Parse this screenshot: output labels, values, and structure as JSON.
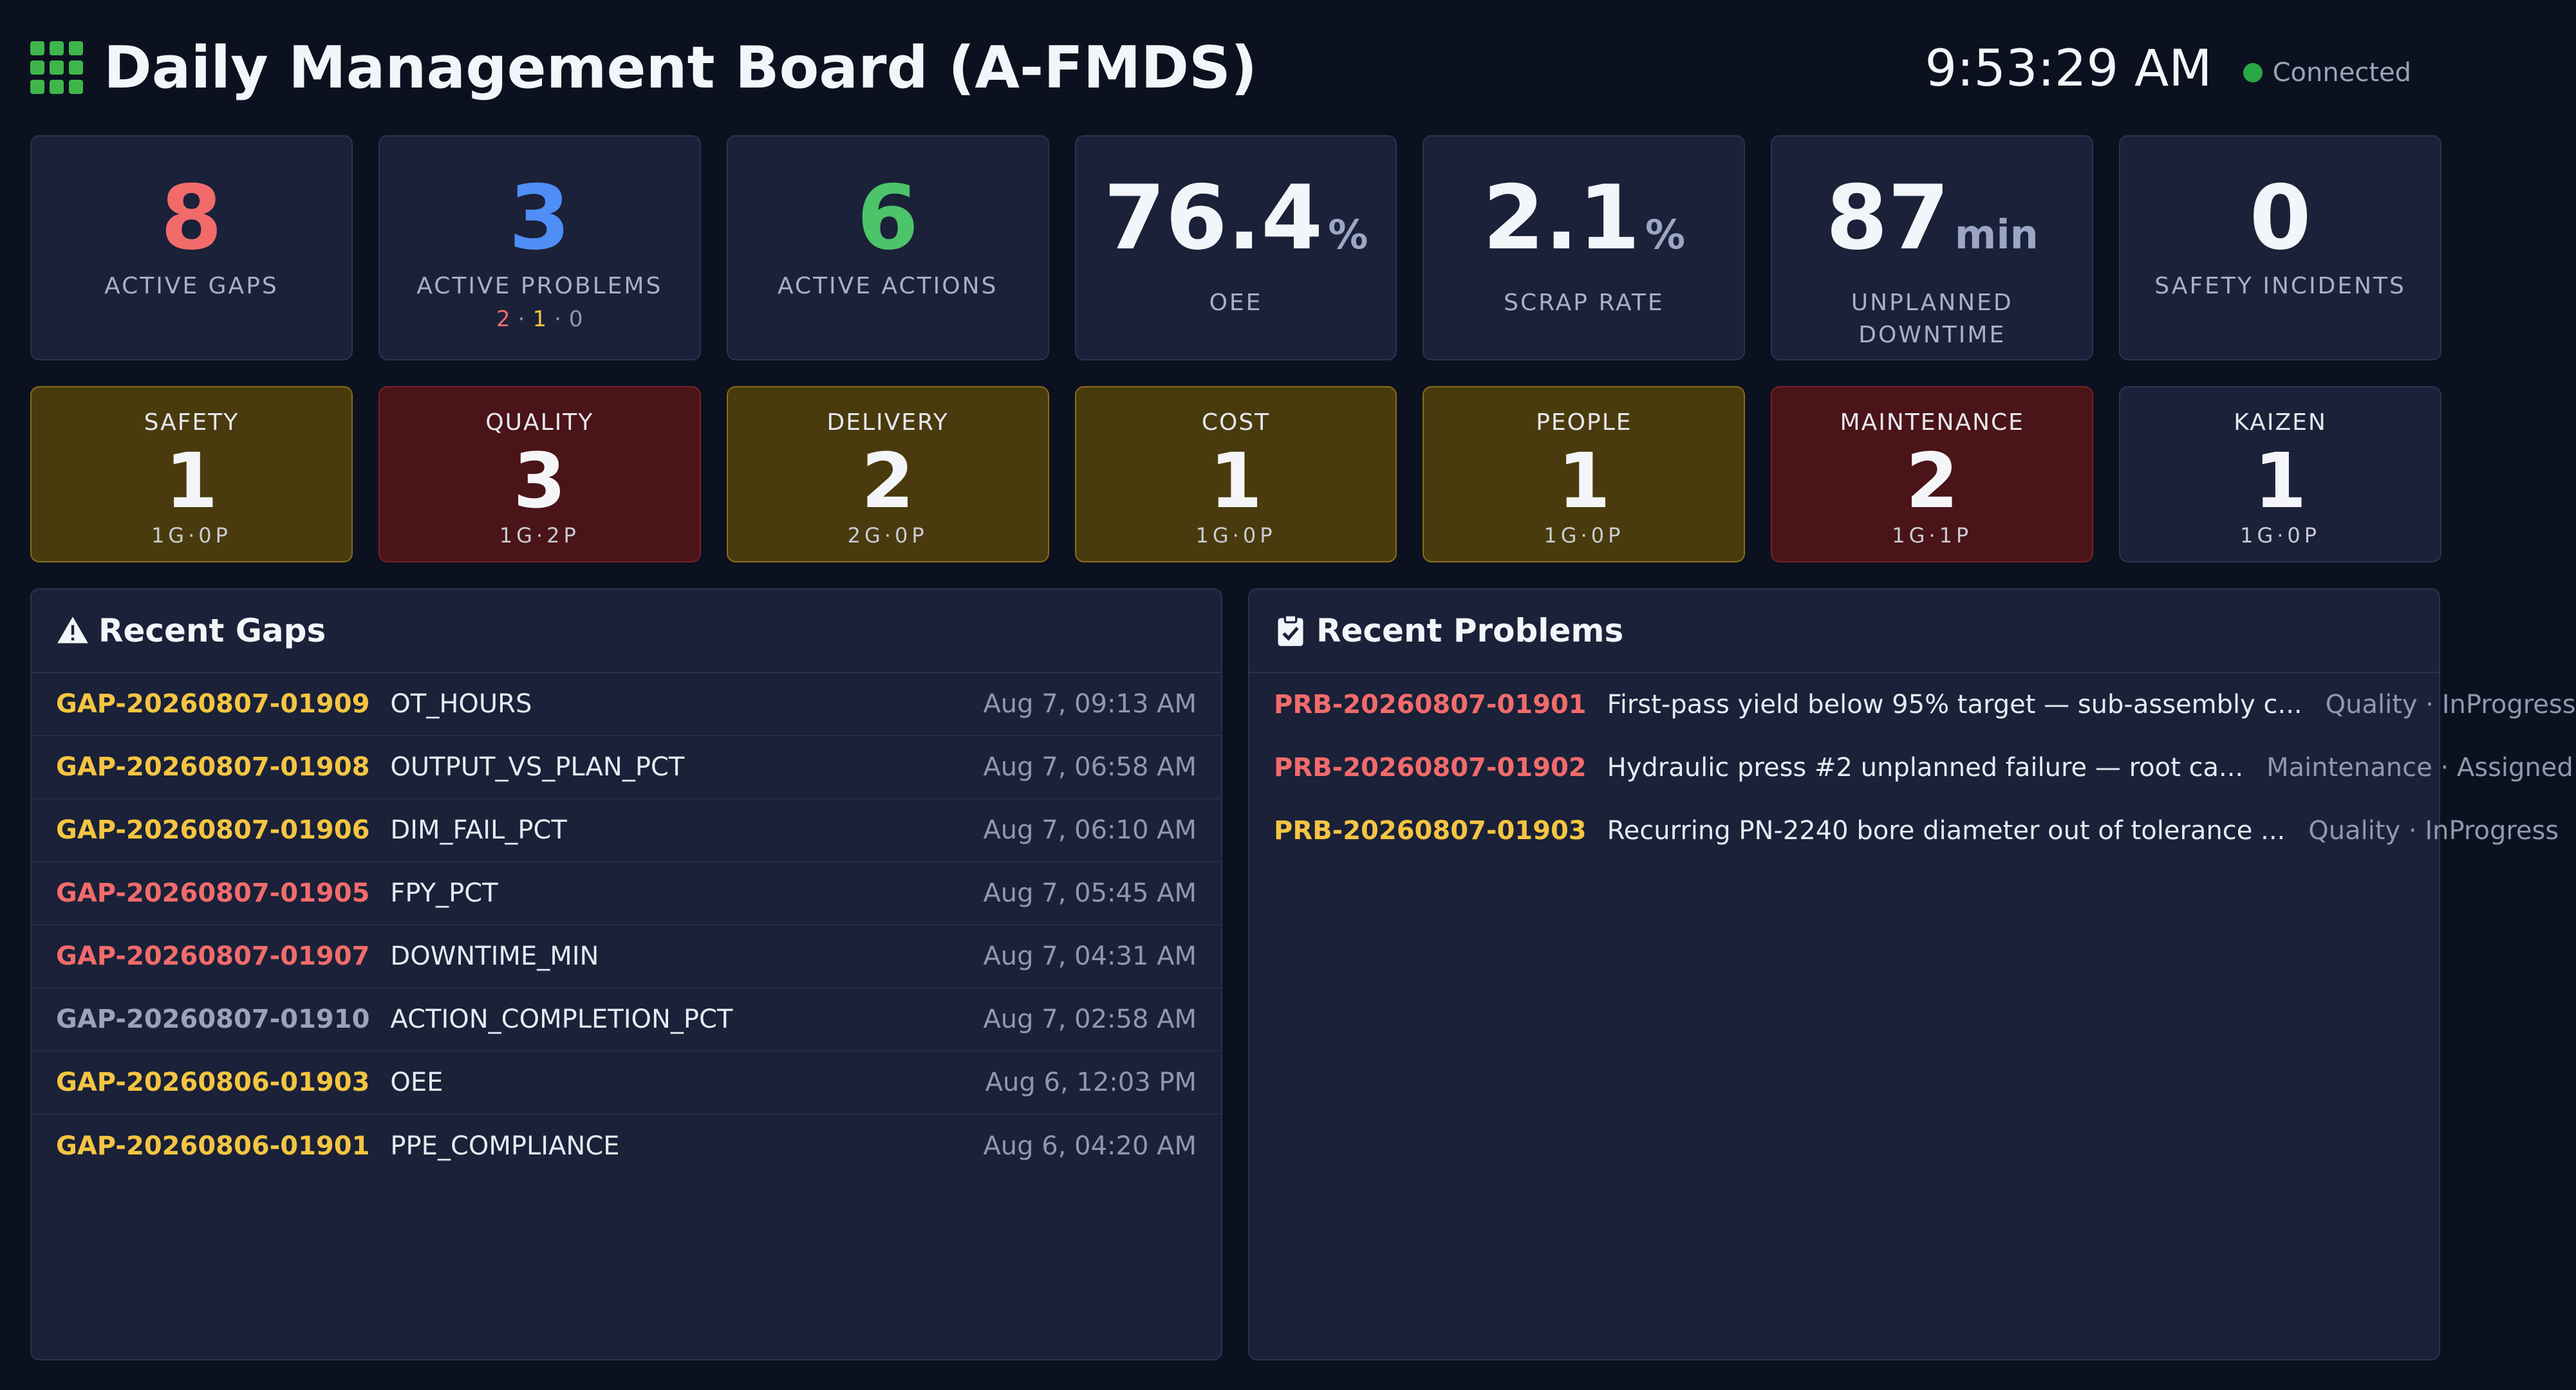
{
  "header": {
    "title": "Daily Management Board (A-FMDS)",
    "clock": "9:53:29 AM",
    "status": "Connected",
    "colors": {
      "icon": "#3fb64b",
      "status_dot": "#27a844"
    }
  },
  "kpis": [
    {
      "value": "8",
      "unit": "",
      "label": "ACTIVE GAPS",
      "color": "#f26b6b"
    },
    {
      "value": "3",
      "unit": "",
      "label": "ACTIVE PROBLEMS",
      "color": "#4f8ef7",
      "breakdown": [
        {
          "v": "2",
          "color": "#f26b6b"
        },
        {
          "v": "·",
          "color": "#8f98ae"
        },
        {
          "v": "1",
          "color": "#f5c542"
        },
        {
          "v": "·",
          "color": "#8f98ae"
        },
        {
          "v": "0",
          "color": "#8f98ae"
        }
      ]
    },
    {
      "value": "6",
      "unit": "",
      "label": "ACTIVE ACTIONS",
      "color": "#4cc46a"
    },
    {
      "value": "76.4",
      "unit": "%",
      "label": "OEE",
      "color": "#f2f5fa"
    },
    {
      "value": "2.1",
      "unit": "%",
      "label": "SCRAP RATE",
      "color": "#f2f5fa"
    },
    {
      "value": "87",
      "unit": "min",
      "label": "UNPLANNED DOWNTIME",
      "color": "#f2f5fa"
    },
    {
      "value": "0",
      "unit": "",
      "label": "SAFETY INCIDENTS",
      "color": "#f2f5fa"
    }
  ],
  "categories": [
    {
      "name": "SAFETY",
      "count": "1",
      "sub": "1G·0P",
      "status": "warn"
    },
    {
      "name": "QUALITY",
      "count": "3",
      "sub": "1G·2P",
      "status": "crit"
    },
    {
      "name": "DELIVERY",
      "count": "2",
      "sub": "2G·0P",
      "status": "warn"
    },
    {
      "name": "COST",
      "count": "1",
      "sub": "1G·0P",
      "status": "warn"
    },
    {
      "name": "PEOPLE",
      "count": "1",
      "sub": "1G·0P",
      "status": "warn"
    },
    {
      "name": "MAINTENANCE",
      "count": "2",
      "sub": "1G·1P",
      "status": "crit"
    },
    {
      "name": "KAIZEN",
      "count": "1",
      "sub": "1G·0P",
      "status": "ok"
    }
  ],
  "gaps": {
    "title": "Recent Gaps",
    "icon": "warning-icon",
    "rows": [
      {
        "id": "GAP-20260807-01909",
        "metric": "OT_HOURS",
        "time": "Aug 7, 09:13 AM",
        "color": "#f5c542"
      },
      {
        "id": "GAP-20260807-01908",
        "metric": "OUTPUT_VS_PLAN_PCT",
        "time": "Aug 7, 06:58 AM",
        "color": "#f5c542"
      },
      {
        "id": "GAP-20260807-01906",
        "metric": "DIM_FAIL_PCT",
        "time": "Aug 7, 06:10 AM",
        "color": "#f5c542"
      },
      {
        "id": "GAP-20260807-01905",
        "metric": "FPY_PCT",
        "time": "Aug 7, 05:45 AM",
        "color": "#f26b6b"
      },
      {
        "id": "GAP-20260807-01907",
        "metric": "DOWNTIME_MIN",
        "time": "Aug 7, 04:31 AM",
        "color": "#f26b6b"
      },
      {
        "id": "GAP-20260807-01910",
        "metric": "ACTION_COMPLETION_PCT",
        "time": "Aug 7, 02:58 AM",
        "color": "#9aa3b8"
      },
      {
        "id": "GAP-20260806-01903",
        "metric": "OEE",
        "time": "Aug 6, 12:03 PM",
        "color": "#f5c542"
      },
      {
        "id": "GAP-20260806-01901",
        "metric": "PPE_COMPLIANCE",
        "time": "Aug 6, 04:20 AM",
        "color": "#f5c542"
      }
    ]
  },
  "problems": {
    "title": "Recent Problems",
    "icon": "clipboard-check-icon",
    "rows": [
      {
        "id": "PRB-20260807-01901",
        "desc": "First-pass yield below 95% target — sub-assembly c...",
        "meta": "Quality · InProgress",
        "color": "#f26b6b"
      },
      {
        "id": "PRB-20260807-01902",
        "desc": "Hydraulic press #2 unplanned failure — root ca...",
        "meta": "Maintenance · Assigned",
        "color": "#f26b6b"
      },
      {
        "id": "PRB-20260807-01903",
        "desc": "Recurring PN-2240 bore diameter out of tolerance ...",
        "meta": "Quality · InProgress",
        "color": "#f5c542"
      }
    ]
  }
}
